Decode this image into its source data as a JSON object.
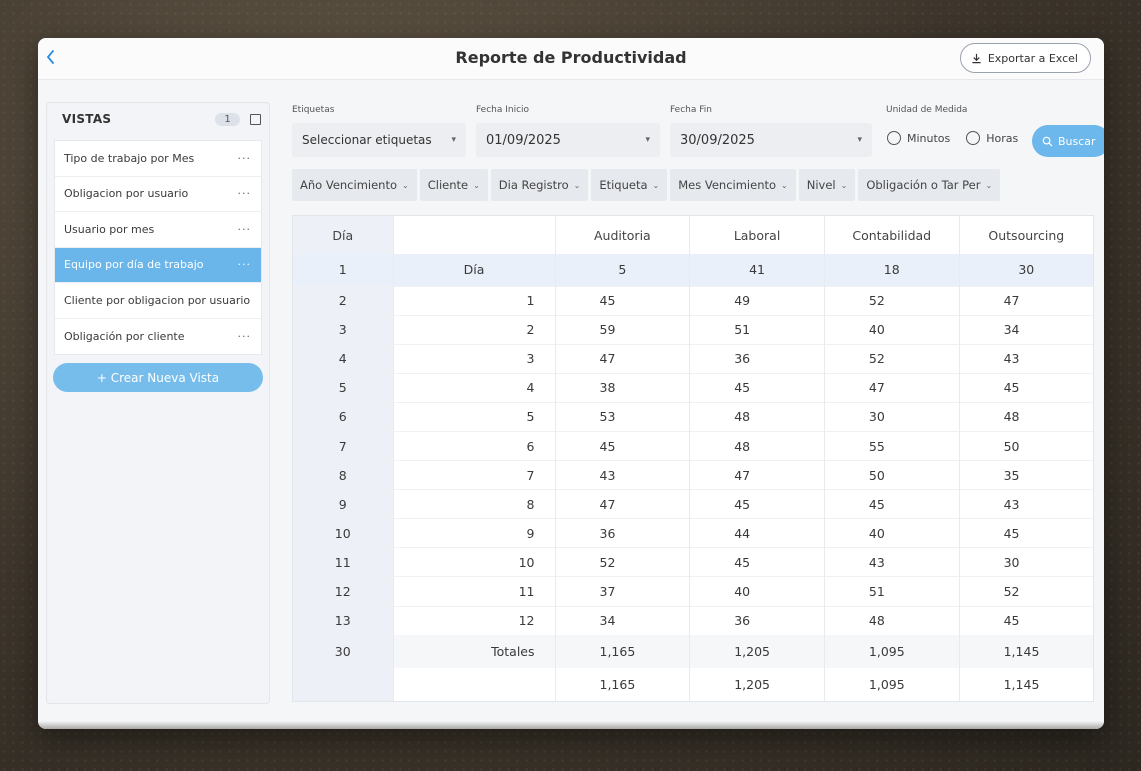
{
  "header": {
    "title": "Reporte de Productividad",
    "back_icon": "chevron-left-icon",
    "export_label": "Exportar a Excel"
  },
  "sidebar": {
    "title": "VISTAS",
    "count": "1",
    "items": [
      {
        "label": "Tipo de trabajo por Mes",
        "menu": "···",
        "active": false
      },
      {
        "label": "Obligacion por usuario",
        "menu": "···",
        "active": false
      },
      {
        "label": "Usuario por mes",
        "menu": "···",
        "active": false
      },
      {
        "label": "Equipo por día de trabajo",
        "menu": "···",
        "active": true
      },
      {
        "label": "Cliente por obligacion por usuario",
        "menu": "",
        "active": false
      },
      {
        "label": "Obligación por cliente",
        "menu": "···",
        "active": false
      }
    ],
    "new_view_label": "+ Crear Nueva Vista"
  },
  "filters": {
    "tags_label": "Etiquetas",
    "tags_value": "Seleccionar etiquetas",
    "start_label": "Fecha Inicio",
    "start_value": "01/09/2025",
    "end_label": "Fecha Fin",
    "end_value": "30/09/2025",
    "unit_label": "Unidad de Medida",
    "unit_options": [
      "Minutos",
      "Horas"
    ],
    "search_label": "Buscar"
  },
  "chips": [
    "Año Vencimiento",
    "Cliente",
    "Dia Registro",
    "Etiqueta",
    "Mes Vencimiento",
    "Nivel",
    "Obligación o Tar Per"
  ],
  "table": {
    "headers": [
      "Día",
      "",
      "Auditoria",
      "Laboral",
      "Contabilidad",
      "Outsourcing"
    ],
    "first_row": [
      "1",
      "Día",
      "5",
      "41",
      "18",
      "30"
    ],
    "rows": [
      [
        "2",
        "1",
        "45",
        "49",
        "52",
        "47"
      ],
      [
        "3",
        "2",
        "59",
        "51",
        "40",
        "34"
      ],
      [
        "4",
        "3",
        "47",
        "36",
        "52",
        "43"
      ],
      [
        "5",
        "4",
        "38",
        "45",
        "47",
        "45"
      ],
      [
        "6",
        "5",
        "53",
        "48",
        "30",
        "48"
      ],
      [
        "7",
        "6",
        "45",
        "48",
        "55",
        "50"
      ],
      [
        "8",
        "7",
        "43",
        "47",
        "50",
        "35"
      ],
      [
        "9",
        "8",
        "47",
        "45",
        "45",
        "43"
      ],
      [
        "10",
        "9",
        "36",
        "44",
        "40",
        "45"
      ],
      [
        "11",
        "10",
        "52",
        "45",
        "43",
        "30"
      ],
      [
        "12",
        "11",
        "37",
        "40",
        "51",
        "52"
      ],
      [
        "13",
        "12",
        "34",
        "36",
        "48",
        "45"
      ]
    ],
    "total_row": [
      "30",
      "Totales",
      "1,165",
      "1,205",
      "1,095",
      "1,145"
    ],
    "grand_row": [
      "",
      "",
      "1,165",
      "1,205",
      "1,095",
      "1,145"
    ]
  }
}
